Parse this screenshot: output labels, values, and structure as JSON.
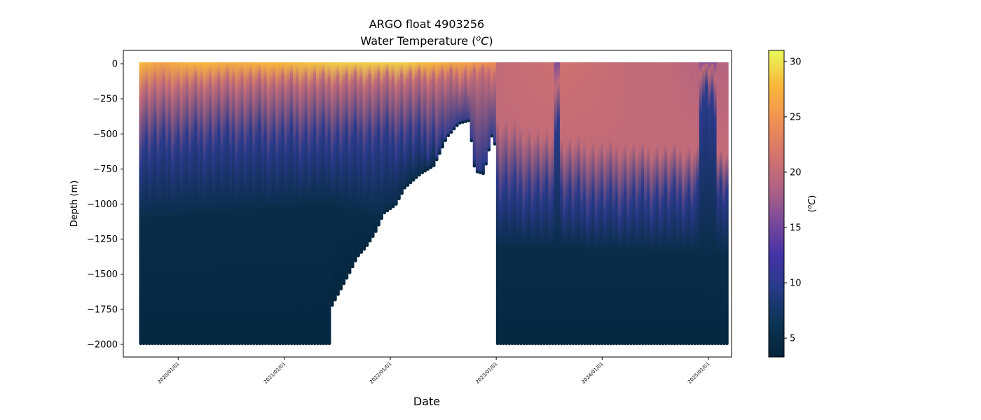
{
  "chart_data": {
    "type": "heatmap",
    "title_line1": "ARGO float 4903256",
    "title_line2_prefix": "Water Temperature (",
    "title_unit_base": "o",
    "title_unit_letter": "C",
    "title_line2_suffix": ")",
    "xlabel": "Date",
    "ylabel": "Depth (m)",
    "colorbar_label_prefix": "(",
    "colorbar_label_sup": "o",
    "colorbar_label_letter": "C",
    "colorbar_label_suffix": ")",
    "x_range": [
      "2019-06-26",
      "2025-03-22"
    ],
    "ylim": [
      -2090,
      95
    ],
    "y_ticks": [
      0,
      -250,
      -500,
      -750,
      -1000,
      -1250,
      -1500,
      -1750,
      -2000
    ],
    "y_tick_labels": [
      "0",
      "−250",
      "−500",
      "−750",
      "−1000",
      "−1250",
      "−1500",
      "−1750",
      "−2000"
    ],
    "x_ticks": [
      "2020-01-01",
      "2021-01-01",
      "2022-01-01",
      "2023-01-01",
      "2024-01-01",
      "2025-01-01"
    ],
    "x_tick_labels": [
      "2020/01/01",
      "2021/01/01",
      "2022/01/01",
      "2023/01/01",
      "2024/01/01",
      "2025/01/01"
    ],
    "colorbar_range": [
      3.3,
      31
    ],
    "colorbar_ticks": [
      5,
      10,
      15,
      20,
      25,
      30
    ],
    "colormap": "thermal",
    "colormap_stops": [
      "#04233b",
      "#0c3452",
      "#253b86",
      "#4533a8",
      "#7c4a9a",
      "#b26382",
      "#d7766b",
      "#f29251",
      "#f9b93a",
      "#e8fa5a"
    ],
    "data_start": "2019-08-25",
    "data_end": "2025-03-12",
    "profile_depth_bottom": [
      {
        "date": "2019-08-25",
        "depth": -1990
      },
      {
        "date": "2021-06-12",
        "depth": -1990
      },
      {
        "date": "2021-06-14",
        "depth": -1720
      },
      {
        "date": "2021-07-15",
        "depth": -1600
      },
      {
        "date": "2021-08-15",
        "depth": -1480
      },
      {
        "date": "2021-09-10",
        "depth": -1370
      },
      {
        "date": "2021-10-10",
        "depth": -1300
      },
      {
        "date": "2021-11-10",
        "depth": -1200
      },
      {
        "date": "2021-12-10",
        "depth": -1060
      },
      {
        "date": "2022-01-20",
        "depth": -1000
      },
      {
        "date": "2022-02-20",
        "depth": -880
      },
      {
        "date": "2022-04-15",
        "depth": -780
      },
      {
        "date": "2022-06-01",
        "depth": -720
      },
      {
        "date": "2022-07-15",
        "depth": -520
      },
      {
        "date": "2022-08-25",
        "depth": -420
      },
      {
        "date": "2022-09-30",
        "depth": -400
      },
      {
        "date": "2022-10-20",
        "depth": -760
      },
      {
        "date": "2022-11-20",
        "depth": -780
      },
      {
        "date": "2022-12-20",
        "depth": -480
      },
      {
        "date": "2023-01-05",
        "depth": -680
      },
      {
        "date": "2023-01-06",
        "depth": -1990
      },
      {
        "date": "2025-03-12",
        "depth": -1990
      }
    ],
    "surface_temperature": [
      {
        "date": "2019-08-25",
        "value": 28
      },
      {
        "date": "2019-11-01",
        "value": 26
      },
      {
        "date": "2020-03-01",
        "value": 28
      },
      {
        "date": "2020-07-01",
        "value": 27
      },
      {
        "date": "2021-01-01",
        "value": 28
      },
      {
        "date": "2021-07-01",
        "value": 29
      },
      {
        "date": "2022-03-01",
        "value": 29
      },
      {
        "date": "2022-10-01",
        "value": 26
      },
      {
        "date": "2023-01-05",
        "value": 24
      },
      {
        "date": "2023-01-06",
        "value": 20
      },
      {
        "date": "2023-09-01",
        "value": 21
      },
      {
        "date": "2024-04-01",
        "value": 20
      },
      {
        "date": "2024-08-01",
        "value": 20
      },
      {
        "date": "2024-12-01",
        "value": 19
      },
      {
        "date": "2025-03-12",
        "value": 19
      }
    ],
    "depth_20C": [
      {
        "date": "2019-08-25",
        "depth": -180
      },
      {
        "date": "2020-06-01",
        "depth": -140
      },
      {
        "date": "2021-06-01",
        "depth": -130
      },
      {
        "date": "2022-06-01",
        "depth": -110
      },
      {
        "date": "2023-01-05",
        "depth": -80
      },
      {
        "date": "2023-01-06",
        "depth": -420
      },
      {
        "date": "2023-08-01",
        "depth": -560
      },
      {
        "date": "2024-04-01",
        "depth": -600
      },
      {
        "date": "2024-11-01",
        "depth": -620
      },
      {
        "date": "2025-03-12",
        "depth": -640
      }
    ],
    "depth_10C": [
      {
        "date": "2019-08-25",
        "depth": -600
      },
      {
        "date": "2020-06-01",
        "depth": -560
      },
      {
        "date": "2021-06-01",
        "depth": -560
      },
      {
        "date": "2022-06-01",
        "depth": -540
      },
      {
        "date": "2023-01-06",
        "depth": -900
      },
      {
        "date": "2024-01-01",
        "depth": -1000
      },
      {
        "date": "2024-10-01",
        "depth": -960
      },
      {
        "date": "2025-03-12",
        "depth": -900
      }
    ],
    "depth_5C": [
      {
        "date": "2019-08-25",
        "depth": -1100
      },
      {
        "date": "2021-06-01",
        "depth": -1000
      },
      {
        "date": "2023-01-06",
        "depth": -1300
      },
      {
        "date": "2025-03-12",
        "depth": -1350
      }
    ],
    "cold_anomalies": [
      {
        "start": "2023-07-20",
        "end": "2023-08-08",
        "depth_20C": -120,
        "depth_10C": -380
      },
      {
        "start": "2024-11-28",
        "end": "2025-01-25",
        "depth_20C": -40,
        "depth_10C": -280
      }
    ]
  }
}
